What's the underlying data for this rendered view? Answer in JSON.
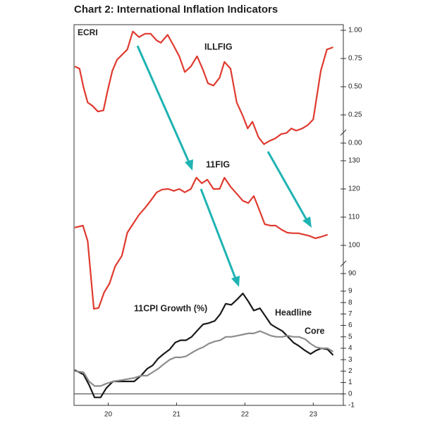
{
  "title": "Chart 2: International Inflation Indicators",
  "logo": "ECRI",
  "chart_data": [
    {
      "type": "line",
      "xlim": [
        19.5,
        23.44
      ],
      "ylim": [
        -0.075,
        1.05
      ],
      "grid": false,
      "yticks": [
        {
          "value": 0,
          "label": "0.00"
        },
        {
          "value": 0.25,
          "label": "0.25"
        },
        {
          "value": 0.5,
          "label": "0.50"
        },
        {
          "value": 0.75,
          "label": "0.75"
        },
        {
          "value": 1,
          "label": "1.00"
        }
      ],
      "x": [
        19.51,
        19.58,
        19.64,
        19.7,
        19.77,
        19.85,
        19.93,
        19.99,
        20.06,
        20.13,
        20.28,
        20.36,
        20.45,
        20.54,
        20.62,
        20.71,
        20.77,
        20.87,
        20.96,
        21.04,
        21.12,
        21.21,
        21.3,
        21.38,
        21.46,
        21.54,
        21.63,
        21.7,
        21.79,
        21.88,
        21.97,
        22.04,
        22.11,
        22.2,
        22.28,
        22.36,
        22.44,
        22.53,
        22.61,
        22.68,
        22.75,
        22.84,
        22.92,
        23.0,
        23.11,
        23.2,
        23.29
      ],
      "series": [
        {
          "name": "ILLFIG",
          "color": "#e03a2f",
          "values": [
            0.68,
            0.66,
            0.49,
            0.36,
            0.33,
            0.28,
            0.29,
            0.46,
            0.64,
            0.74,
            0.83,
            0.99,
            0.94,
            0.97,
            0.97,
            0.91,
            0.89,
            0.96,
            0.86,
            0.77,
            0.63,
            0.68,
            0.77,
            0.66,
            0.53,
            0.51,
            0.58,
            0.72,
            0.66,
            0.36,
            0.24,
            0.13,
            0.19,
            0.05,
            -0.01,
            0.02,
            0.04,
            0.08,
            0.09,
            0.13,
            0.11,
            0.13,
            0.16,
            0.21,
            0.64,
            0.83,
            0.85
          ]
        }
      ]
    },
    {
      "type": "line",
      "xlim": [
        19.5,
        23.44
      ],
      "ylim": [
        77,
        132
      ],
      "grid": false,
      "yticks": [
        90,
        100,
        110,
        120,
        130
      ],
      "x": [
        19.51,
        19.63,
        19.7,
        19.79,
        19.86,
        19.94,
        20.02,
        20.1,
        20.2,
        20.28,
        20.36,
        20.45,
        20.54,
        20.62,
        20.71,
        20.79,
        20.88,
        20.96,
        21.04,
        21.12,
        21.21,
        21.29,
        21.37,
        21.45,
        21.54,
        21.63,
        21.7,
        21.79,
        21.88,
        21.97,
        22.05,
        22.13,
        22.22,
        22.29,
        22.37,
        22.45,
        22.54,
        22.62,
        22.7,
        22.78,
        22.87,
        22.95,
        23.03,
        23.11,
        23.21
      ],
      "series": [
        {
          "name": "11FIG",
          "color": "#e03a2f",
          "values": [
            106.3,
            107,
            101.5,
            77.5,
            77.8,
            83.3,
            86.5,
            92.5,
            96.3,
            104.5,
            107.5,
            110.8,
            113.3,
            115.8,
            118.8,
            119.8,
            120,
            119.3,
            120,
            118.8,
            120,
            124,
            122,
            123.3,
            120,
            120,
            124,
            120.8,
            118.3,
            115.8,
            115,
            117.5,
            112,
            107.5,
            107,
            107,
            105.5,
            104.5,
            104.3,
            104.3,
            103.8,
            103.3,
            102.5,
            103,
            103.8
          ]
        }
      ]
    },
    {
      "type": "line",
      "title": "11CPI Growth (%)",
      "xlim": [
        19.5,
        23.44
      ],
      "ylim": [
        -1,
        9.8
      ],
      "grid": false,
      "yticks": [
        -1,
        0,
        1,
        2,
        3,
        4,
        5,
        6,
        7,
        8,
        9
      ],
      "xticks": [
        20,
        21,
        22,
        23
      ],
      "x": [
        19.51,
        19.64,
        19.72,
        19.8,
        19.89,
        19.97,
        20.07,
        20.18,
        20.28,
        20.38,
        20.48,
        20.57,
        20.65,
        20.73,
        20.81,
        20.9,
        20.98,
        21.06,
        21.14,
        21.22,
        21.31,
        21.39,
        21.47,
        21.56,
        21.64,
        21.72,
        21.8,
        21.89,
        21.97,
        22.05,
        22.13,
        22.22,
        22.3,
        22.38,
        22.46,
        22.55,
        22.63,
        22.71,
        22.79,
        22.88,
        22.96,
        23.04,
        23.12,
        23.21,
        23.29
      ],
      "series": [
        {
          "name": "Headline",
          "color": "#1a1a1a",
          "values": [
            2.1,
            1.7,
            0.8,
            -0.3,
            -0.3,
            0.5,
            1.1,
            1.1,
            1.1,
            1.1,
            1.6,
            2.2,
            2.5,
            3.1,
            3.5,
            3.9,
            4.5,
            4.7,
            4.7,
            5.0,
            5.6,
            6.1,
            6.2,
            6.4,
            7.0,
            7.9,
            7.8,
            8.3,
            8.8,
            8.1,
            7.3,
            7.5,
            6.8,
            6.1,
            5.8,
            5.5,
            5.0,
            4.5,
            4.2,
            3.8,
            3.5,
            3.8,
            4.0,
            3.9,
            3.4
          ]
        },
        {
          "name": "Core",
          "color": "#8c8c8c",
          "values": [
            2.0,
            1.9,
            1.1,
            0.7,
            0.7,
            0.9,
            1.1,
            1.2,
            1.3,
            1.4,
            1.6,
            1.6,
            1.9,
            2.2,
            2.6,
            3.0,
            3.2,
            3.2,
            3.3,
            3.6,
            3.9,
            4.1,
            4.4,
            4.6,
            4.7,
            5.0,
            5.0,
            5.1,
            5.2,
            5.3,
            5.3,
            5.5,
            5.3,
            5.1,
            5.0,
            5.0,
            5.1,
            5.0,
            5.0,
            4.8,
            4.4,
            4.1,
            4.0,
            4.0,
            3.7
          ]
        }
      ]
    }
  ]
}
